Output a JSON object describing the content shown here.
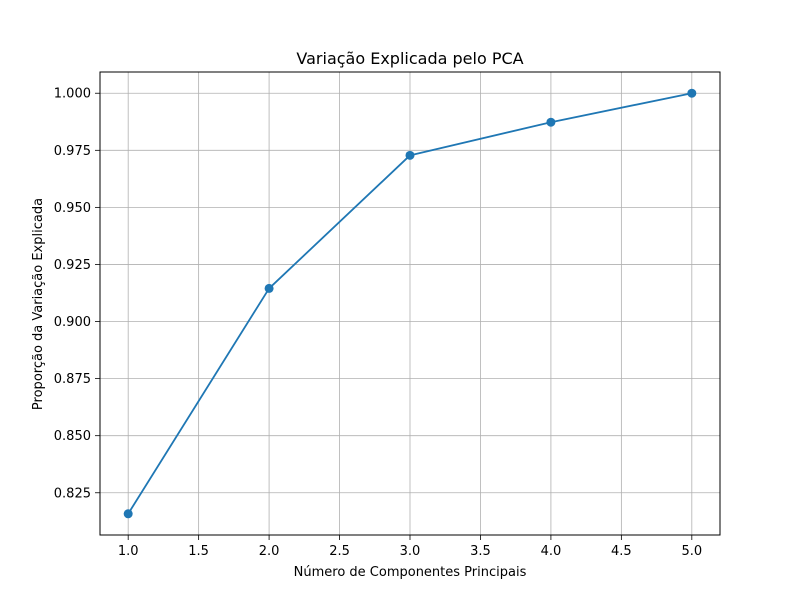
{
  "chart_data": {
    "type": "line",
    "title": "Variação Explicada pelo PCA",
    "xlabel": "Número de Componentes Principais",
    "ylabel": "Proporção da Variação Explicada",
    "x": [
      1,
      2,
      3,
      4,
      5
    ],
    "series": [
      {
        "values": [
          0.8158,
          0.9145,
          0.9728,
          0.9873,
          1.0
        ],
        "color": "#1f77b4",
        "marker": "circle"
      }
    ],
    "xlim": [
      0.8,
      5.2
    ],
    "ylim": [
      0.8065,
      1.0093
    ],
    "xticks": [
      1.0,
      1.5,
      2.0,
      2.5,
      3.0,
      3.5,
      4.0,
      4.5,
      5.0
    ],
    "xtick_labels": [
      "1.0",
      "1.5",
      "2.0",
      "2.5",
      "3.0",
      "3.5",
      "4.0",
      "4.5",
      "5.0"
    ],
    "yticks": [
      0.825,
      0.85,
      0.875,
      0.9,
      0.925,
      0.95,
      0.975,
      1.0
    ],
    "ytick_labels": [
      "0.825",
      "0.850",
      "0.875",
      "0.900",
      "0.925",
      "0.950",
      "0.975",
      "1.000"
    ],
    "grid": true,
    "legend": "none",
    "grid_color": "#b0b0b0",
    "axis_color": "#000000"
  }
}
